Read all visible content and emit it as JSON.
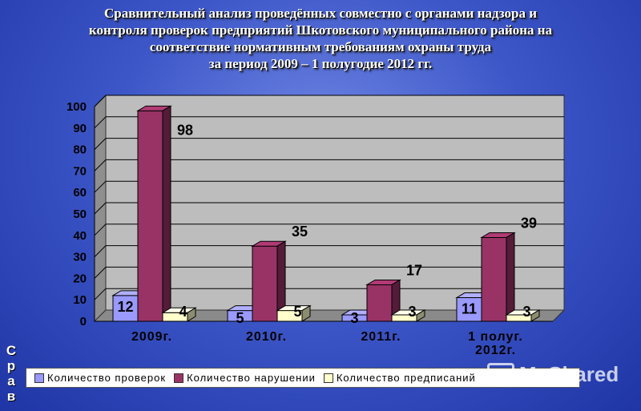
{
  "title_lines": [
    "Сравнительный анализ проведённых совместно с органами надзора и",
    "контроля проверок предприятий Шкотовского  муниципального района на",
    "соответствие нормативным требованиям охраны труда",
    "за период  2009 – 1 полугодие 2012 гг."
  ],
  "side_letters": [
    "С",
    "р",
    "а",
    "в"
  ],
  "watermark": "MyShared",
  "chart_data": {
    "type": "bar",
    "categories": [
      [
        "2009г."
      ],
      [
        "2010г."
      ],
      [
        "2011г."
      ],
      [
        "1 полуг.",
        "2012г."
      ]
    ],
    "series": [
      {
        "name": "Количество проверок",
        "color": "#9999ff",
        "values": [
          12,
          5,
          3,
          11
        ]
      },
      {
        "name": "Количество нарушении",
        "color": "#993366",
        "values": [
          98,
          35,
          17,
          39
        ]
      },
      {
        "name": "Количество предписаний",
        "color": "#ffffcc",
        "values": [
          4,
          5,
          3,
          3
        ]
      }
    ],
    "ylim": [
      0,
      100
    ],
    "yticks": [
      0,
      10,
      20,
      30,
      40,
      50,
      60,
      70,
      80,
      90,
      100
    ],
    "grid": true,
    "legend_position": "bottom"
  }
}
